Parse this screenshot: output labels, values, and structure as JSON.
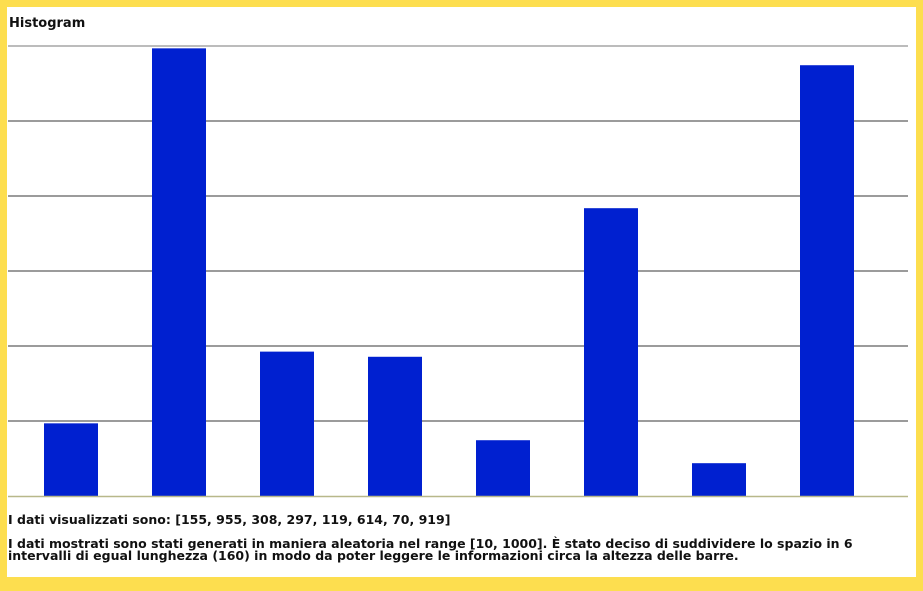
{
  "title": "Histogram",
  "colors": {
    "frame": "#fdde4f",
    "bar": "#0020d0",
    "grid": "#7a7a7a",
    "axis": "#b8b88a"
  },
  "chart_data": {
    "type": "bar",
    "title": "Histogram",
    "xlabel": "",
    "ylabel": "",
    "categories": [
      "",
      "",
      "",
      "",
      "",
      "",
      "",
      ""
    ],
    "values": [
      155,
      955,
      308,
      297,
      119,
      614,
      70,
      919
    ],
    "ylim": [
      0,
      960
    ],
    "yticks": [
      0,
      160,
      320,
      480,
      640,
      800,
      960
    ],
    "grid": true,
    "legend": "none"
  },
  "info": {
    "values_text": "I dati visualizzati sono: [155, 955, 308, 297, 119, 614, 70, 919]",
    "description_text": "I dati mostrati sono stati generati in maniera aleatoria nel range [10, 1000]. È stato deciso di suddividere lo spazio in 6 intervalli di egual lunghezza (160) in modo da poter leggere le informazioni circa la altezza delle barre."
  }
}
